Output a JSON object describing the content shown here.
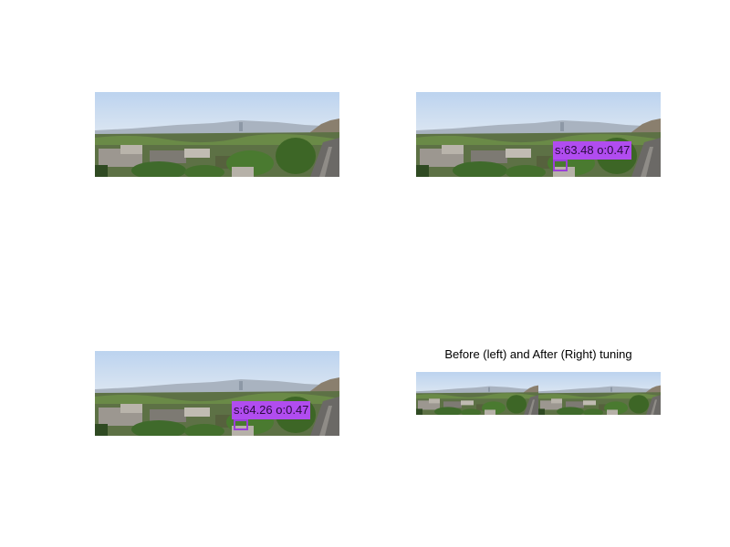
{
  "figure": {
    "panels": [
      {
        "id": "original",
        "detection": null
      },
      {
        "id": "detection-before",
        "detection": {
          "label": "s:63.48 o:0.47",
          "color": "#b14cf0"
        }
      },
      {
        "id": "detection-after",
        "detection": {
          "label": "s:64.26 o:0.47",
          "color": "#b14cf0"
        }
      }
    ],
    "comparison": {
      "caption": "Before (left) and After (Right) tuning"
    }
  }
}
